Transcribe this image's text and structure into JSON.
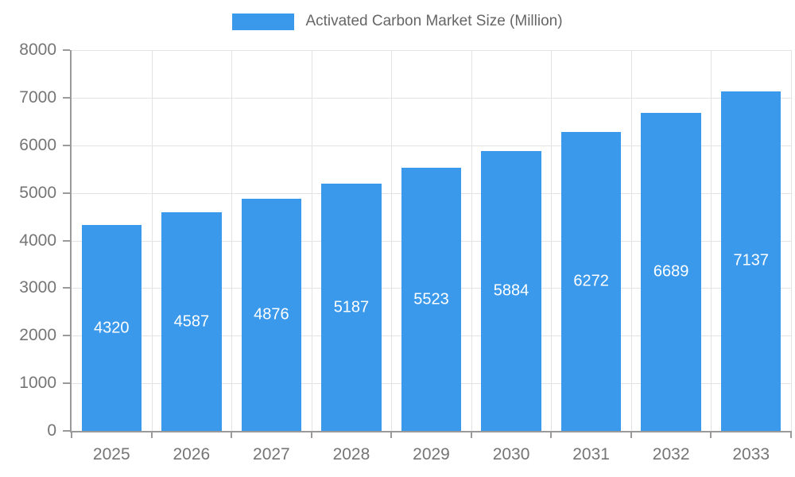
{
  "chart_data": {
    "type": "bar",
    "title": "Activated Carbon Market Size (Million)",
    "legend": {
      "position": "top-center",
      "label": "Activated Carbon Market Size (Million)"
    },
    "categories": [
      "2025",
      "2026",
      "2027",
      "2028",
      "2029",
      "2030",
      "2031",
      "2032",
      "2033"
    ],
    "series": [
      {
        "name": "Activated Carbon Market Size (Million)",
        "values": [
          4320,
          4587,
          4876,
          5187,
          5523,
          5884,
          6272,
          6689,
          7137
        ]
      }
    ],
    "value_labels_shown": true,
    "xlabel": "",
    "ylabel": "",
    "ylim": [
      0,
      8000
    ],
    "yticks": [
      0,
      1000,
      2000,
      3000,
      4000,
      5000,
      6000,
      7000,
      8000
    ],
    "grid": true,
    "colors": {
      "bar": "#3b99ec",
      "grid": "#e3e3e3",
      "axis": "#9a9a9a",
      "tick_text": "#757575",
      "legend_text": "#666666",
      "value_text": "#ffffff",
      "background": "#ffffff"
    }
  }
}
